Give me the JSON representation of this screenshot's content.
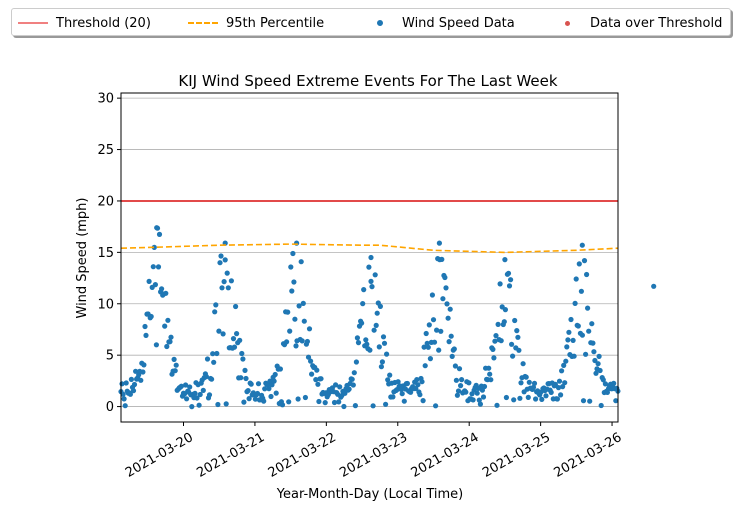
{
  "chart_data": {
    "type": "scatter",
    "title": "KIJ Wind Speed Extreme Events For The Last Week",
    "xlabel": "Year-Month-Day (Local Time)",
    "ylabel": "Wind Speed (mph)",
    "xlim": [
      "2021-03-19T03:00",
      "2021-03-26T02:00"
    ],
    "ylim": [
      -1.5,
      30.5
    ],
    "yticks": [
      0,
      5,
      10,
      15,
      20,
      25,
      30
    ],
    "xticks": [
      "2021-03-20",
      "2021-03-21",
      "2021-03-22",
      "2021-03-23",
      "2021-03-24",
      "2021-03-25",
      "2021-03-26"
    ],
    "grid": "horizontal",
    "legend_position": "top, above plot",
    "series": [
      {
        "name": "Threshold (20)",
        "kind": "line",
        "color": "#e24a4a",
        "value": 20
      },
      {
        "name": "95th Percentile",
        "kind": "dashed-line",
        "color": "#ffa500",
        "points": [
          [
            "2021-03-19T03:00",
            15.4
          ],
          [
            "2021-03-19T15:00",
            15.5
          ],
          [
            "2021-03-20T12:00",
            15.7
          ],
          [
            "2021-03-21T12:00",
            15.8
          ],
          [
            "2021-03-22T12:00",
            15.7
          ],
          [
            "2021-03-22T18:00",
            15.7
          ],
          [
            "2021-03-23T12:00",
            15.2
          ],
          [
            "2021-03-24T12:00",
            15.0
          ],
          [
            "2021-03-25T12:00",
            15.2
          ],
          [
            "2021-03-26T02:00",
            15.4
          ]
        ]
      },
      {
        "name": "Wind Speed Data",
        "kind": "scatter",
        "color": "#1f77b4",
        "daily_peaks": [
          {
            "time": "2021-03-19T15:00",
            "peak": 17.4
          },
          {
            "time": "2021-03-20T14:00",
            "peak": 15.9
          },
          {
            "time": "2021-03-21T14:00",
            "peak": 15.9
          },
          {
            "time": "2021-03-22T15:00",
            "peak": 14.5
          },
          {
            "time": "2021-03-23T14:00",
            "peak": 15.9
          },
          {
            "time": "2021-03-24T12:00",
            "peak": 14.3
          },
          {
            "time": "2021-03-25T14:00",
            "peak": 15.7
          },
          {
            "time": "2021-03-26T14:00",
            "peak": 11.7
          }
        ],
        "typical_range": [
          0,
          15
        ]
      },
      {
        "name": "Data over Threshold",
        "kind": "scatter",
        "color": "#d9534f",
        "points": []
      }
    ]
  }
}
